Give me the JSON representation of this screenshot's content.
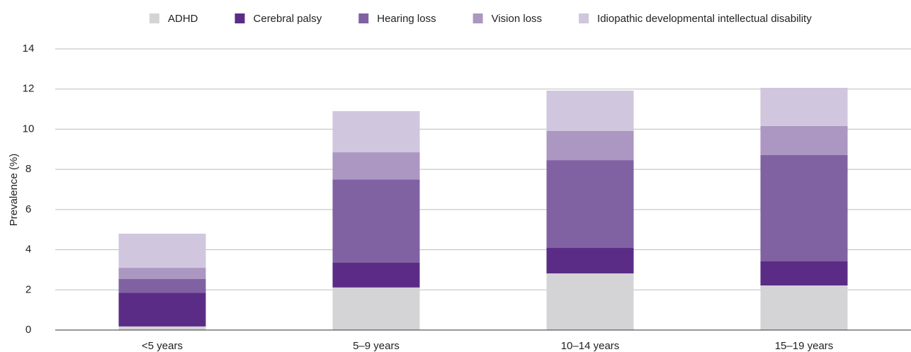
{
  "chart_data": {
    "type": "stacked_bar",
    "y_label": "Prevalence (%)",
    "categories": [
      "<5 years",
      "5–9 years",
      "10–14 years",
      "15–19 years"
    ],
    "series": [
      {
        "name": "ADHD",
        "color": "#d4d4d6",
        "values": [
          0.18,
          2.12,
          2.82,
          2.22
        ]
      },
      {
        "name": "Cerebral palsy",
        "color": "#5b2c86",
        "values": [
          1.67,
          1.23,
          1.27,
          1.2
        ]
      },
      {
        "name": "Hearing loss",
        "color": "#8062a3",
        "values": [
          0.7,
          4.15,
          4.37,
          5.29
        ]
      },
      {
        "name": "Vision loss",
        "color": "#ab97c2",
        "values": [
          0.55,
          1.35,
          1.45,
          1.45
        ]
      },
      {
        "name": "Idiopathic developmental intellectual disability",
        "color": "#d0c6de",
        "values": [
          1.7,
          2.05,
          2.01,
          1.9
        ]
      }
    ],
    "ylim": [
      0,
      14
    ],
    "yticks": [
      0,
      2,
      4,
      6,
      8,
      10,
      12,
      14
    ],
    "grid": true
  }
}
